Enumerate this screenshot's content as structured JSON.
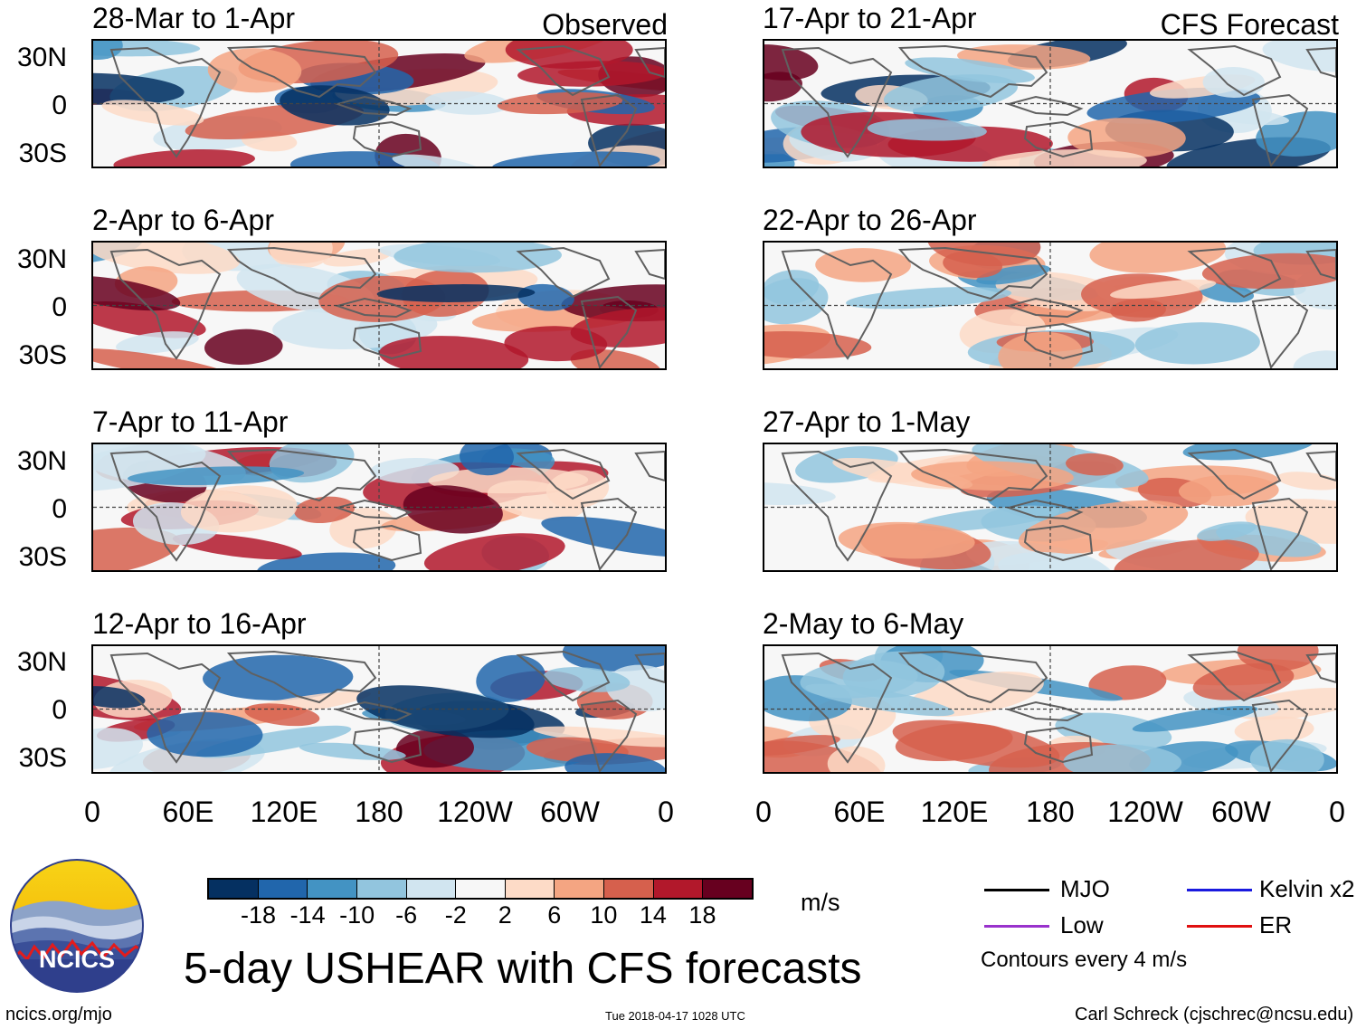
{
  "header": {
    "observed_label": "Observed",
    "forecast_label": "CFS Forecast"
  },
  "panels": [
    {
      "title": "28-Mar to 1-Apr",
      "column": "observed"
    },
    {
      "title": "2-Apr to 6-Apr",
      "column": "observed"
    },
    {
      "title": "7-Apr to 11-Apr",
      "column": "observed"
    },
    {
      "title": "12-Apr to 16-Apr",
      "column": "observed"
    },
    {
      "title": "17-Apr to 21-Apr",
      "column": "forecast"
    },
    {
      "title": "22-Apr to 26-Apr",
      "column": "forecast"
    },
    {
      "title": "27-Apr to 1-May",
      "column": "forecast"
    },
    {
      "title": "2-May to 6-May",
      "column": "forecast"
    }
  ],
  "lat_labels": [
    "30N",
    "0",
    "30S"
  ],
  "lon_labels": [
    "0",
    "60E",
    "120E",
    "180",
    "120W",
    "60W",
    "0"
  ],
  "colorbar": {
    "unit": "m/s",
    "tick_labels": [
      "-18",
      "-14",
      "-10",
      "-6",
      "-2",
      "2",
      "6",
      "10",
      "14",
      "18"
    ],
    "colors": [
      "#053061",
      "#2166ac",
      "#4393c3",
      "#92c5de",
      "#d1e5f0",
      "#f7f7f7",
      "#fddbc7",
      "#f4a582",
      "#d6604d",
      "#b2182b",
      "#67001f"
    ]
  },
  "legend": {
    "mjo": {
      "label": "MJO",
      "color": "#000000"
    },
    "low": {
      "label": "Low",
      "color": "#9932cc"
    },
    "kelvin": {
      "label": "Kelvin x2",
      "color": "#1a1adf"
    },
    "er": {
      "label": "ER",
      "color": "#e01010"
    },
    "contour_note": "Contours every 4 m/s"
  },
  "logo": {
    "text": "NCICS"
  },
  "footer": {
    "title": "5-day USHEAR with CFS forecasts",
    "url": "ncics.org/mjo",
    "timestamp": "Tue 2018-04-17 1028 UTC",
    "credit": "Carl Schreck (cjschrec@ncsu.edu)"
  }
}
